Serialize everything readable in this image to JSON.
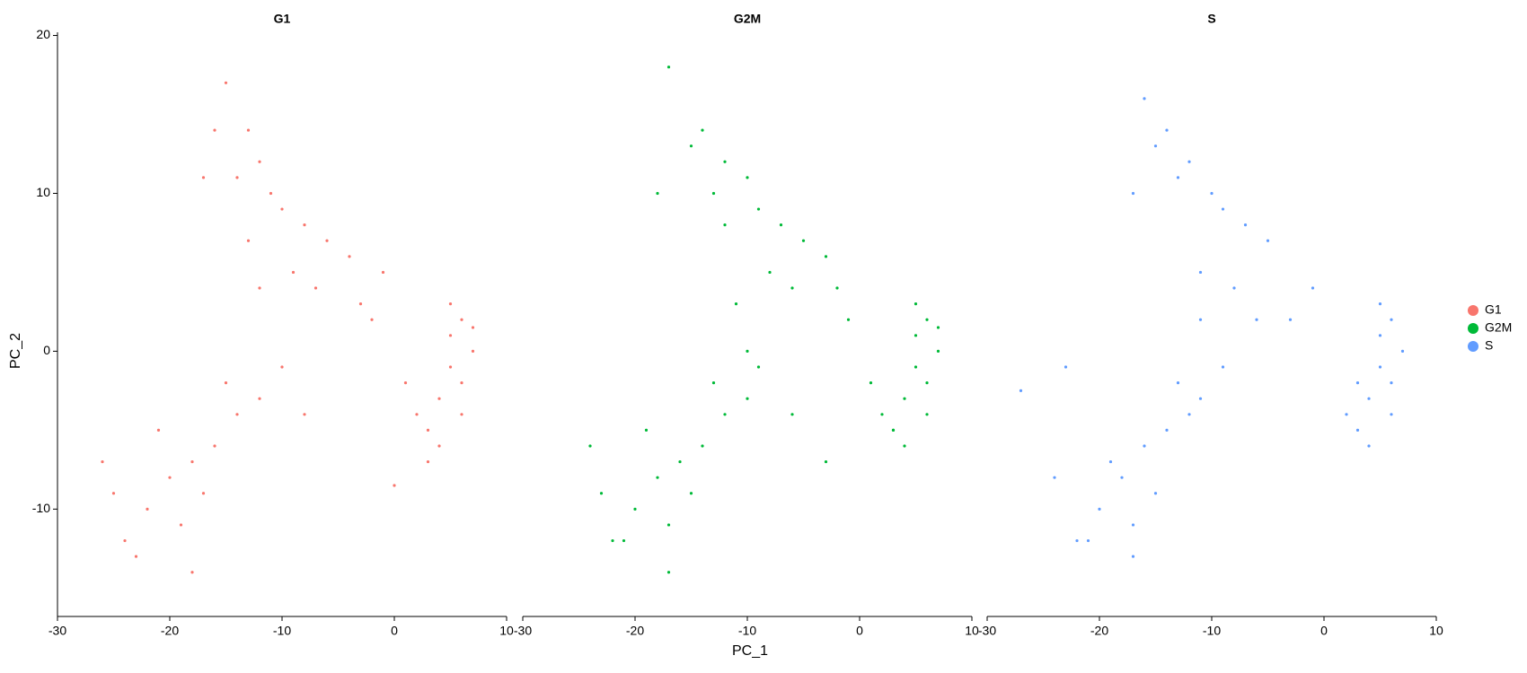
{
  "chart_data": {
    "type": "scatter",
    "x_label": "PC_1",
    "y_label": "PC_2",
    "xlim": [
      -30,
      10
    ],
    "ylim": [
      -16.8,
      20.2
    ],
    "xticks": [
      -30,
      -20,
      -10,
      0,
      10
    ],
    "yticks": [
      -10,
      0,
      10,
      20
    ],
    "legend_position": "right",
    "series": [
      {
        "name": "G1",
        "color": "#f8766d",
        "x": [
          -15,
          -13,
          -12,
          -14,
          -11,
          -10,
          -8,
          -6,
          -4,
          -13,
          -16,
          -17,
          -9,
          -7,
          -12,
          -3,
          -1,
          -20,
          -18,
          -22,
          -24,
          -19,
          -16,
          -14,
          -12,
          -17,
          -21,
          -25,
          -23,
          -15,
          -10,
          -8,
          -18,
          -26,
          5,
          6,
          7,
          5,
          4,
          3,
          4,
          6,
          5,
          2,
          3,
          1,
          7,
          6,
          0,
          -2
        ],
        "y": [
          17,
          14,
          12,
          11,
          10,
          9,
          8,
          7,
          6,
          7,
          14,
          11,
          5,
          4,
          4,
          3,
          5,
          -8,
          -7,
          -10,
          -12,
          -11,
          -6,
          -4,
          -3,
          -9,
          -5,
          -9,
          -13,
          -2,
          -1,
          -4,
          -14,
          -7,
          1,
          2,
          0,
          -1,
          -3,
          -5,
          -6,
          -2,
          3,
          -4,
          -7,
          -2,
          1.5,
          -4,
          -8.5,
          2
        ]
      },
      {
        "name": "G2M",
        "color": "#00ba38",
        "x": [
          -17,
          -14,
          -12,
          -13,
          -10,
          -9,
          -7,
          -5,
          -3,
          -12,
          -15,
          -18,
          -8,
          -6,
          -11,
          -2,
          -1,
          -18,
          -16,
          -20,
          -22,
          -17,
          -14,
          -12,
          -10,
          -15,
          -19,
          -24,
          -21,
          -13,
          -9,
          -6,
          -17,
          -23,
          5,
          6,
          7,
          5,
          4,
          3,
          4,
          6,
          5,
          2,
          3,
          1,
          7,
          6,
          -3,
          -10
        ],
        "y": [
          18,
          14,
          12,
          10,
          11,
          9,
          8,
          7,
          6,
          8,
          13,
          10,
          5,
          4,
          3,
          4,
          2,
          -8,
          -7,
          -10,
          -12,
          -11,
          -6,
          -4,
          -3,
          -9,
          -5,
          -6,
          -12,
          -2,
          -1,
          -4,
          -14,
          -9,
          1,
          2,
          0,
          -1,
          -3,
          -5,
          -6,
          -2,
          3,
          -4,
          -5,
          -2,
          1.5,
          -4,
          -7,
          0
        ]
      },
      {
        "name": "S",
        "color": "#619cff",
        "x": [
          -16,
          -14,
          -12,
          -13,
          -10,
          -9,
          -7,
          -5,
          -11,
          -15,
          -17,
          -8,
          -6,
          -11,
          -3,
          -1,
          -18,
          -16,
          -20,
          -22,
          -17,
          -14,
          -12,
          -15,
          -19,
          -24,
          -21,
          -13,
          -9,
          -17,
          5,
          6,
          7,
          5,
          4,
          3,
          4,
          6,
          5,
          2,
          3,
          6,
          -27,
          -23,
          -11
        ],
        "y": [
          16,
          14,
          12,
          11,
          10,
          9,
          8,
          7,
          5,
          13,
          10,
          4,
          2,
          2,
          2,
          4,
          -8,
          -6,
          -10,
          -12,
          -11,
          -5,
          -4,
          -9,
          -7,
          -8,
          -12,
          -2,
          -1,
          -13,
          1,
          2,
          0,
          -1,
          -3,
          -5,
          -6,
          -2,
          3,
          -4,
          -2,
          -4,
          -2.5,
          -1,
          -3
        ]
      }
    ]
  }
}
